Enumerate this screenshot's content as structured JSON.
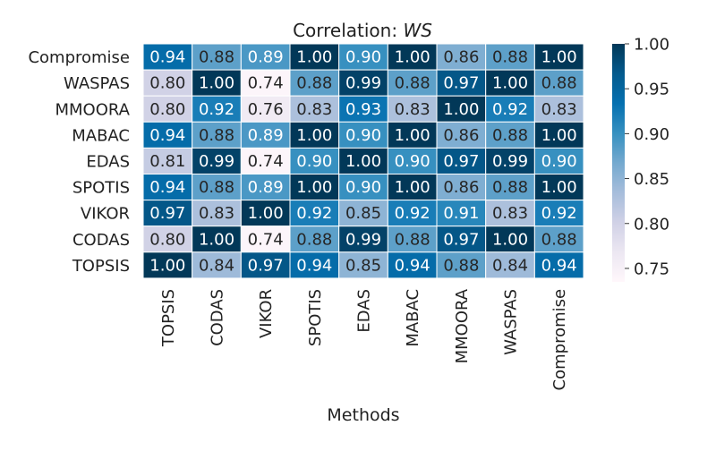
{
  "chart_data": {
    "type": "heatmap",
    "title_prefix": "Correlation: ",
    "title_var": "WS",
    "xlabel": "Methods",
    "ylabel": "",
    "x_categories": [
      "TOPSIS",
      "CODAS",
      "VIKOR",
      "SPOTIS",
      "EDAS",
      "MABAC",
      "MMOORA",
      "WASPAS",
      "Compromise"
    ],
    "y_categories": [
      "Compromise",
      "WASPAS",
      "MMOORA",
      "MABAC",
      "EDAS",
      "SPOTIS",
      "VIKOR",
      "CODAS",
      "TOPSIS"
    ],
    "values": [
      [
        0.94,
        0.88,
        0.89,
        1.0,
        0.9,
        1.0,
        0.86,
        0.88,
        1.0
      ],
      [
        0.8,
        1.0,
        0.74,
        0.88,
        0.99,
        0.88,
        0.97,
        1.0,
        0.88
      ],
      [
        0.8,
        0.92,
        0.76,
        0.83,
        0.93,
        0.83,
        1.0,
        0.92,
        0.83
      ],
      [
        0.94,
        0.88,
        0.89,
        1.0,
        0.9,
        1.0,
        0.86,
        0.88,
        1.0
      ],
      [
        0.81,
        0.99,
        0.74,
        0.9,
        1.0,
        0.9,
        0.97,
        0.99,
        0.9
      ],
      [
        0.94,
        0.88,
        0.89,
        1.0,
        0.9,
        1.0,
        0.86,
        0.88,
        1.0
      ],
      [
        0.97,
        0.83,
        1.0,
        0.92,
        0.85,
        0.92,
        0.91,
        0.83,
        0.92
      ],
      [
        0.8,
        1.0,
        0.74,
        0.88,
        0.99,
        0.88,
        0.97,
        1.0,
        0.88
      ],
      [
        1.0,
        0.84,
        0.97,
        0.94,
        0.85,
        0.94,
        0.88,
        0.84,
        0.94
      ]
    ],
    "colorbar": {
      "min": 0.735,
      "max": 1.0,
      "ticks": [
        "0.75",
        "0.80",
        "0.85",
        "0.90",
        "0.95",
        "1.00"
      ],
      "colormap": "PuBu",
      "stops": [
        "#fff7fb",
        "#ece7f2",
        "#d0d1e6",
        "#a6bddb",
        "#74a9cf",
        "#3690c0",
        "#0570b0",
        "#045a8d",
        "#023858"
      ]
    }
  }
}
